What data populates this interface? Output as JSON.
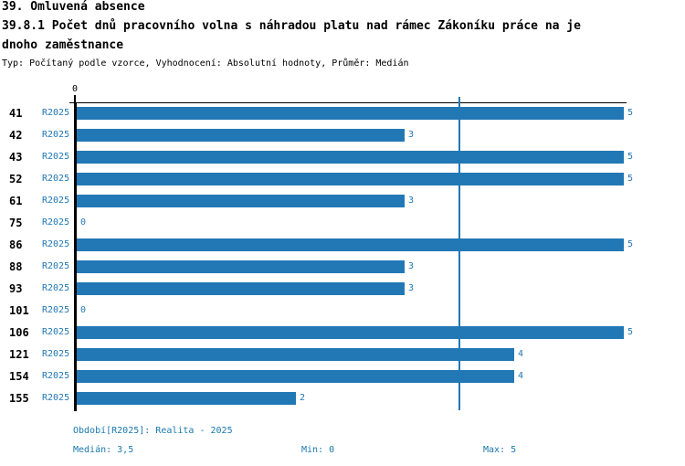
{
  "header": {
    "line1": "39. Omluvená absence",
    "line2": "39.8.1 Počet dnů pracovního volna s náhradou platu nad rámec Zákoníku práce na je",
    "line3": "dnoho zaměstnance",
    "meta": "Typ: Počítaný podle vzorce, Vyhodnocení: Absolutní hodnoty, Průměr: Medián"
  },
  "chart_data": {
    "type": "bar",
    "orientation": "horizontal",
    "title": "39.8.1 Počet dnů pracovního volna s náhradou platu nad rámec Zákoníku práce na jednoho zaměstnance",
    "categories": [
      "41",
      "42",
      "43",
      "52",
      "61",
      "75",
      "86",
      "88",
      "93",
      "101",
      "106",
      "121",
      "154",
      "155"
    ],
    "series": [
      {
        "name": "R2025",
        "values": [
          5,
          3,
          5,
          5,
          3,
          0,
          5,
          3,
          3,
          0,
          5,
          4,
          4,
          2
        ]
      }
    ],
    "xlim": [
      0,
      5
    ],
    "axis_zero_label": "0",
    "median_line_value": 3.5,
    "grid": false,
    "legend_position": "none",
    "bar_color": "#2278b5",
    "stats": {
      "median": 3.5,
      "min": 0,
      "max": 5
    }
  },
  "footer": {
    "period": "Období[R2025]: Realita - 2025",
    "median": "Medián: 3,5",
    "min": "Min: 0",
    "max": "Max: 5"
  },
  "colors": {
    "bar": "#2278b5",
    "blue_text": "#2278b5",
    "footer_text": "#1a79ae",
    "axis": "#000000"
  }
}
